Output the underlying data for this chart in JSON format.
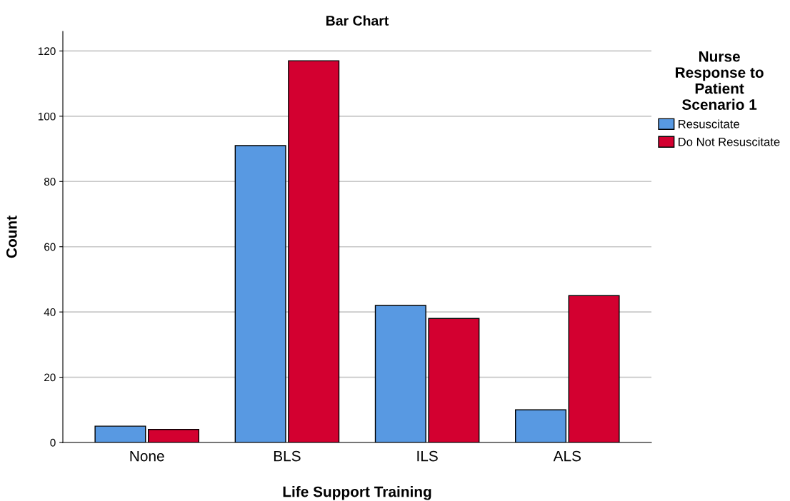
{
  "chart_data": {
    "type": "bar",
    "title": "Bar Chart",
    "xlabel": "Life Support Training",
    "ylabel": "Count",
    "legend_title": "Nurse\nResponse to\nPatient\nScenario 1",
    "categories": [
      "None",
      "BLS",
      "ILS",
      "ALS"
    ],
    "series": [
      {
        "name": "Resuscitate",
        "color": "#5899e2",
        "values": [
          5,
          91,
          42,
          10
        ]
      },
      {
        "name": "Do Not Resuscitate",
        "color": "#d30030",
        "values": [
          4,
          117,
          38,
          45
        ]
      }
    ],
    "ylim": [
      0,
      126
    ],
    "yticks": [
      0,
      20,
      40,
      60,
      80,
      100,
      120
    ],
    "grid": "y",
    "legend": "top right"
  }
}
